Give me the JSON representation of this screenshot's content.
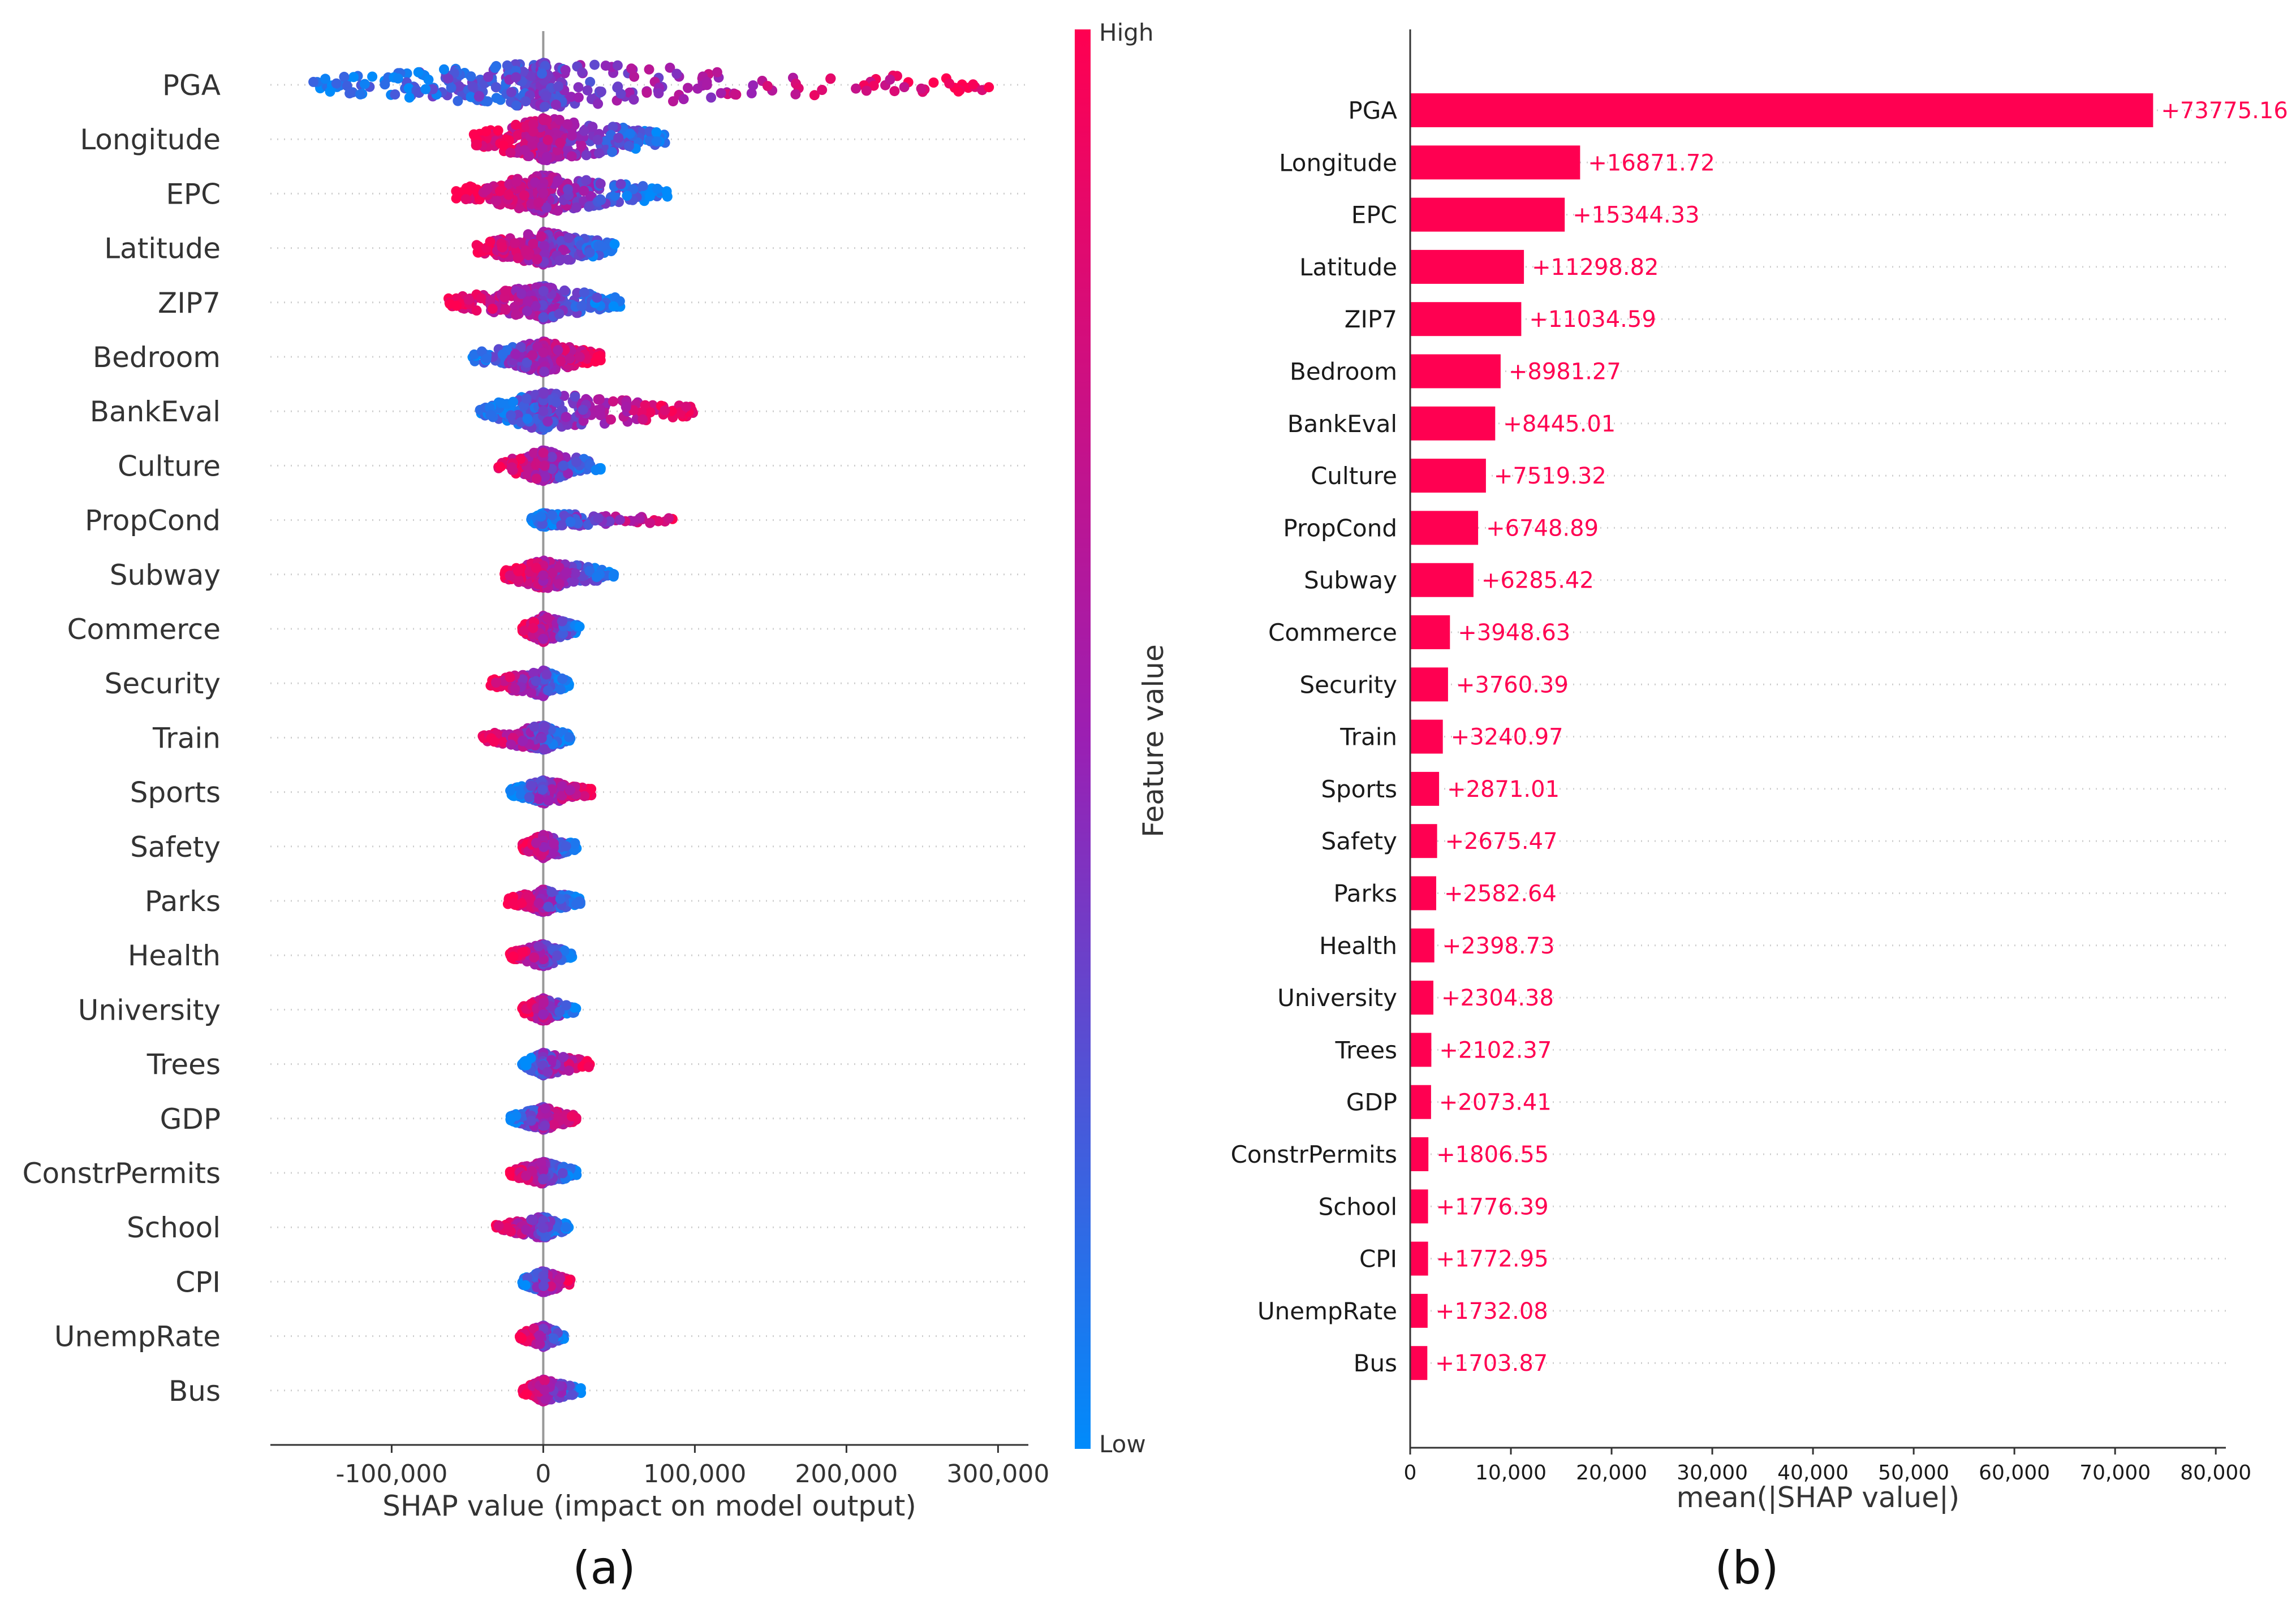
{
  "colors": {
    "high": "#ff0051",
    "mid": "#9b1fb3",
    "low": "#008bfb",
    "axis": "#333333",
    "grid": "#cccccc"
  },
  "chart_data": [
    {
      "panel": "(a)",
      "type": "scatter",
      "subtype": "shap-beeswarm",
      "xlabel": "SHAP value (impact on model output)",
      "xlim": [
        -180000,
        320000
      ],
      "xticks": [
        -100000,
        0,
        100000,
        200000,
        300000
      ],
      "xtick_labels": [
        "-100,000",
        "0",
        "100,000",
        "200,000",
        "300,000"
      ],
      "colorbar": {
        "title": "Feature value",
        "high_label": "High",
        "low_label": "Low"
      },
      "features": [
        {
          "name": "PGA",
          "min": -158000,
          "max": 298000,
          "spread": 0.95,
          "lowSide": "left"
        },
        {
          "name": "Longitude",
          "min": -47000,
          "max": 86000,
          "spread": 0.9,
          "lowSide": "right"
        },
        {
          "name": "EPC",
          "min": -58000,
          "max": 82000,
          "spread": 0.8,
          "lowSide": "right"
        },
        {
          "name": "Latitude",
          "min": -45000,
          "max": 50000,
          "spread": 0.7,
          "lowSide": "right"
        },
        {
          "name": "ZIP7",
          "min": -64000,
          "max": 52000,
          "spread": 0.72,
          "lowSide": "right"
        },
        {
          "name": "Bedroom",
          "min": -48000,
          "max": 38000,
          "spread": 0.65,
          "lowSide": "left"
        },
        {
          "name": "BankEval",
          "min": -42000,
          "max": 100000,
          "spread": 0.8,
          "lowSide": "left"
        },
        {
          "name": "Culture",
          "min": -30000,
          "max": 38000,
          "spread": 0.65,
          "lowSide": "right"
        },
        {
          "name": "PropCond",
          "min": -8000,
          "max": 92000,
          "spread": 0.3,
          "lowSide": "left"
        },
        {
          "name": "Subway",
          "min": -26000,
          "max": 48000,
          "spread": 0.6,
          "lowSide": "right"
        },
        {
          "name": "Commerce",
          "min": -14000,
          "max": 24000,
          "spread": 0.55,
          "lowSide": "right"
        },
        {
          "name": "Security",
          "min": -36000,
          "max": 17000,
          "spread": 0.55,
          "lowSide": "right"
        },
        {
          "name": "Train",
          "min": -40000,
          "max": 18000,
          "spread": 0.52,
          "lowSide": "right"
        },
        {
          "name": "Sports",
          "min": -22000,
          "max": 33000,
          "spread": 0.5,
          "lowSide": "left"
        },
        {
          "name": "Safety",
          "min": -14000,
          "max": 22000,
          "spread": 0.5,
          "lowSide": "right"
        },
        {
          "name": "Parks",
          "min": -24000,
          "max": 25000,
          "spread": 0.48,
          "lowSide": "right"
        },
        {
          "name": "Health",
          "min": -22000,
          "max": 19000,
          "spread": 0.48,
          "lowSide": "right"
        },
        {
          "name": "University",
          "min": -14000,
          "max": 22000,
          "spread": 0.48,
          "lowSide": "right"
        },
        {
          "name": "Trees",
          "min": -14000,
          "max": 31000,
          "spread": 0.48,
          "lowSide": "left"
        },
        {
          "name": "GDP",
          "min": -22000,
          "max": 22000,
          "spread": 0.48,
          "lowSide": "left"
        },
        {
          "name": "ConstrPermits",
          "min": -22000,
          "max": 22000,
          "spread": 0.48,
          "lowSide": "right"
        },
        {
          "name": "School",
          "min": -32000,
          "max": 17000,
          "spread": 0.46,
          "lowSide": "right"
        },
        {
          "name": "CPI",
          "min": -14000,
          "max": 18000,
          "spread": 0.46,
          "lowSide": "left"
        },
        {
          "name": "UnempRate",
          "min": -16000,
          "max": 14000,
          "spread": 0.46,
          "lowSide": "right"
        },
        {
          "name": "Bus",
          "min": -14000,
          "max": 25000,
          "spread": 0.46,
          "lowSide": "right"
        }
      ]
    },
    {
      "panel": "(b)",
      "type": "bar",
      "orientation": "horizontal",
      "xlabel": "mean(|SHAP value|)",
      "xlim": [
        0,
        81000
      ],
      "xticks": [
        0,
        10000,
        20000,
        30000,
        40000,
        50000,
        60000,
        70000,
        80000
      ],
      "xtick_labels": [
        "0",
        "10,000",
        "20,000",
        "30,000",
        "40,000",
        "50,000",
        "60,000",
        "70,000",
        "80,000"
      ],
      "categories": [
        "PGA",
        "Longitude",
        "EPC",
        "Latitude",
        "ZIP7",
        "Bedroom",
        "BankEval",
        "Culture",
        "PropCond",
        "Subway",
        "Commerce",
        "Security",
        "Train",
        "Sports",
        "Safety",
        "Parks",
        "Health",
        "University",
        "Trees",
        "GDP",
        "ConstrPermits",
        "School",
        "CPI",
        "UnempRate",
        "Bus"
      ],
      "values": [
        73775.16,
        16871.72,
        15344.33,
        11298.82,
        11034.59,
        8981.27,
        8445.01,
        7519.32,
        6748.89,
        6285.42,
        3948.63,
        3760.39,
        3240.97,
        2871.01,
        2675.47,
        2582.64,
        2398.73,
        2304.38,
        2102.37,
        2073.41,
        1806.55,
        1776.39,
        1772.95,
        1732.08,
        1703.87
      ],
      "value_labels": [
        "+73775.16",
        "+16871.72",
        "+15344.33",
        "+11298.82",
        "+11034.59",
        "+8981.27",
        "+8445.01",
        "+7519.32",
        "+6748.89",
        "+6285.42",
        "+3948.63",
        "+3760.39",
        "+3240.97",
        "+2871.01",
        "+2675.47",
        "+2582.64",
        "+2398.73",
        "+2304.38",
        "+2102.37",
        "+2073.41",
        "+1806.55",
        "+1776.39",
        "+1772.95",
        "+1732.08",
        "+1703.87"
      ]
    }
  ]
}
